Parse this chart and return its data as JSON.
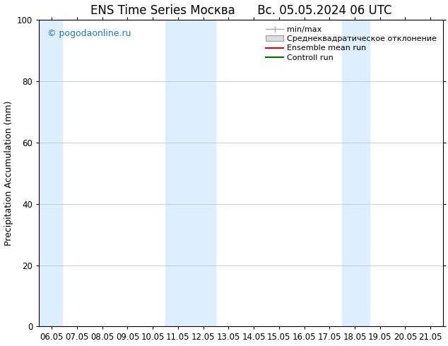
{
  "title": "ENS Time Series Москва      Вс. 05.05.2024 06 UTC",
  "ylabel": "Precipitation Accumulation (mm)",
  "ylim": [
    0,
    100
  ],
  "x_tick_labels": [
    "06.05",
    "07.05",
    "08.05",
    "09.05",
    "10.05",
    "11.05",
    "12.05",
    "13.05",
    "14.05",
    "15.05",
    "16.05",
    "17.05",
    "18.05",
    "19.05",
    "20.05",
    "21.05"
  ],
  "background_color": "#ffffff",
  "plot_bg_color": "#ffffff",
  "watermark": "© pogodaonline.ru",
  "legend_labels": [
    "min/max",
    "Среднеквадратическое отклонение",
    "Ensemble mean run",
    "Controll run"
  ],
  "shaded_color": "#ddeeff",
  "shaded_ranges": [
    [
      0,
      0.9
    ],
    [
      5,
      7
    ],
    [
      12,
      13.1
    ]
  ],
  "grid_color": "#bbbbbb",
  "title_fontsize": 12,
  "tick_fontsize": 8.5,
  "ylabel_fontsize": 9,
  "legend_fontsize": 8,
  "minmax_color": "#aaaaaa",
  "std_color": "#cccccc",
  "ens_color": "#dd0000",
  "ctrl_color": "#006600"
}
